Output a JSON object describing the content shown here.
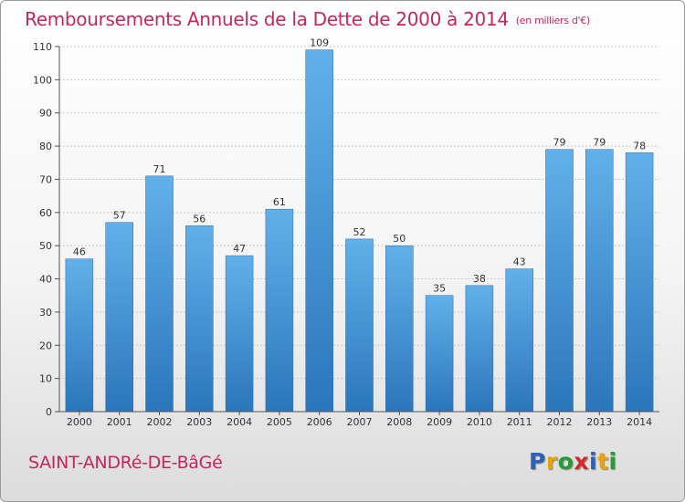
{
  "title": "Remboursements Annuels de la Dette de 2000 à 2014",
  "unit": "(en milliers d'€)",
  "commune": "SAINT-ANDRé-DE-BâGé",
  "logo": {
    "letters": [
      "P",
      "r",
      "o",
      "x",
      "i",
      "t",
      "i"
    ],
    "colors": [
      "#2a62b8",
      "#e8a40c",
      "#2a9a34",
      "#d42a2a",
      "#2a62b8",
      "#e8a40c",
      "#2a9a34"
    ]
  },
  "colors": {
    "bar_top": "#62b0ea",
    "bar_bottom": "#2b76bb",
    "text": "#c4285a"
  },
  "chart_data": {
    "type": "bar",
    "categories": [
      "2000",
      "2001",
      "2002",
      "2003",
      "2004",
      "2005",
      "2006",
      "2007",
      "2008",
      "2009",
      "2010",
      "2011",
      "2012",
      "2013",
      "2014"
    ],
    "values": [
      46,
      57,
      71,
      56,
      47,
      61,
      109,
      52,
      50,
      35,
      38,
      43,
      79,
      79,
      78
    ],
    "yticks": [
      0,
      10,
      20,
      30,
      40,
      50,
      60,
      70,
      80,
      90,
      100,
      110
    ],
    "ylim": [
      0,
      110
    ],
    "grid": true,
    "data_labels": true
  }
}
